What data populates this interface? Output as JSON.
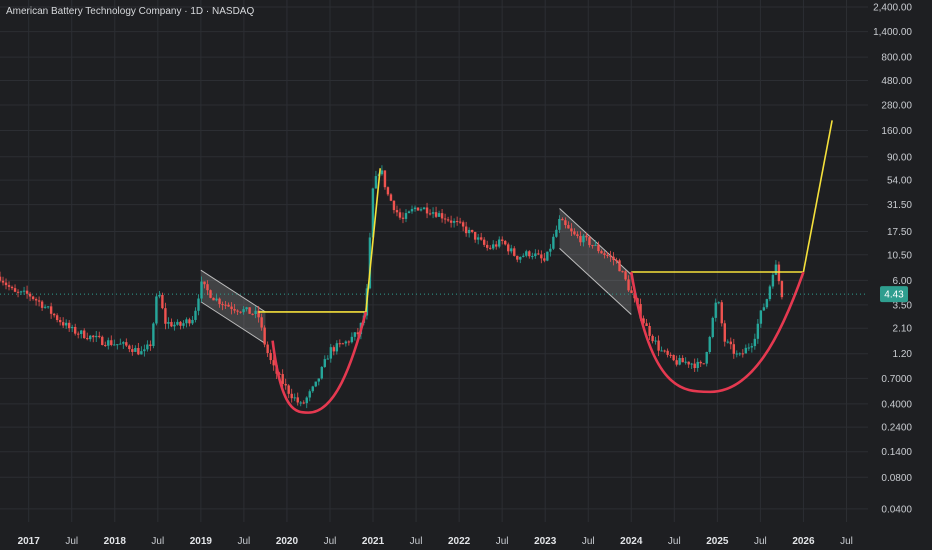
{
  "header": {
    "title": "American Battery Technology Company · 1D · NASDAQ"
  },
  "colors": {
    "background": "#1e1f22",
    "grid": "#2c2e33",
    "up": "#26a69a",
    "down": "#ef5350",
    "trendline": "#f5e13b",
    "cup": "#e53950",
    "channel": "#bdbdbd",
    "current_price": "#2f9e8f"
  },
  "chart_data": {
    "type": "candlestick",
    "title": "American Battery Technology Company · 1D · NASDAQ",
    "y_scale": "log",
    "ylim": [
      0.03,
      2800
    ],
    "xlim": [
      "2016-09",
      "2026-10"
    ],
    "y_ticks": [
      "2,400.00",
      "1,400.00",
      "800.00",
      "480.00",
      "280.00",
      "160.00",
      "90.00",
      "54.00",
      "31.50",
      "17.50",
      "10.50",
      "6.00",
      "3.50",
      "2.10",
      "1.20",
      "0.7000",
      "0.4000",
      "0.2400",
      "0.1400",
      "0.0800",
      "0.0400"
    ],
    "x_ticks": [
      {
        "label": "2017",
        "date": "2017-01",
        "year": true
      },
      {
        "label": "Jul",
        "date": "2017-07",
        "year": false
      },
      {
        "label": "2018",
        "date": "2018-01",
        "year": true
      },
      {
        "label": "Jul",
        "date": "2018-07",
        "year": false
      },
      {
        "label": "2019",
        "date": "2019-01",
        "year": true
      },
      {
        "label": "Jul",
        "date": "2019-07",
        "year": false
      },
      {
        "label": "2020",
        "date": "2020-01",
        "year": true
      },
      {
        "label": "Jul",
        "date": "2020-07",
        "year": false
      },
      {
        "label": "2021",
        "date": "2021-01",
        "year": true
      },
      {
        "label": "Jul",
        "date": "2021-07",
        "year": false
      },
      {
        "label": "2022",
        "date": "2022-01",
        "year": true
      },
      {
        "label": "Jul",
        "date": "2022-07",
        "year": false
      },
      {
        "label": "2023",
        "date": "2023-01",
        "year": true
      },
      {
        "label": "Jul",
        "date": "2023-07",
        "year": false
      },
      {
        "label": "2024",
        "date": "2024-01",
        "year": true
      },
      {
        "label": "Jul",
        "date": "2024-07",
        "year": false
      },
      {
        "label": "2025",
        "date": "2025-01",
        "year": true
      },
      {
        "label": "Jul",
        "date": "2025-07",
        "year": false
      },
      {
        "label": "2026",
        "date": "2026-01",
        "year": true
      },
      {
        "label": "Jul",
        "date": "2026-07",
        "year": false
      }
    ],
    "current_price": {
      "value": 4.43,
      "label": "4.43"
    },
    "price_path": [
      [
        "2016-09",
        6.5
      ],
      [
        "2016-11",
        4.5
      ],
      [
        "2017-01",
        4.4
      ],
      [
        "2017-03",
        3.5
      ],
      [
        "2017-05",
        2.6
      ],
      [
        "2017-07",
        2.0
      ],
      [
        "2017-09",
        1.8
      ],
      [
        "2017-11",
        1.6
      ],
      [
        "2018-01",
        1.5
      ],
      [
        "2018-03",
        1.4
      ],
      [
        "2018-05",
        1.2
      ],
      [
        "2018-06",
        1.5
      ],
      [
        "2018-07",
        5.0
      ],
      [
        "2018-08",
        2.4
      ],
      [
        "2018-10",
        2.2
      ],
      [
        "2018-12",
        2.7
      ],
      [
        "2019-01",
        5.5
      ],
      [
        "2019-03",
        4.0
      ],
      [
        "2019-05",
        3.4
      ],
      [
        "2019-07",
        3.1
      ],
      [
        "2019-09",
        2.8
      ],
      [
        "2019-10",
        1.4
      ],
      [
        "2019-11",
        0.9
      ],
      [
        "2020-01",
        0.55
      ],
      [
        "2020-03",
        0.38
      ],
      [
        "2020-05",
        0.6
      ],
      [
        "2020-07",
        1.3
      ],
      [
        "2020-09",
        1.5
      ],
      [
        "2020-11",
        1.9
      ],
      [
        "2020-12",
        3.2
      ],
      [
        "2021-01",
        45
      ],
      [
        "2021-02",
        72
      ],
      [
        "2021-03",
        40
      ],
      [
        "2021-05",
        22
      ],
      [
        "2021-07",
        30
      ],
      [
        "2021-09",
        28
      ],
      [
        "2021-11",
        24
      ],
      [
        "2022-01",
        20
      ],
      [
        "2022-03",
        16
      ],
      [
        "2022-05",
        12
      ],
      [
        "2022-07",
        14
      ],
      [
        "2022-09",
        10
      ],
      [
        "2022-11",
        11
      ],
      [
        "2023-01",
        9
      ],
      [
        "2023-03",
        22
      ],
      [
        "2023-05",
        16
      ],
      [
        "2023-07",
        14
      ],
      [
        "2023-09",
        11
      ],
      [
        "2023-11",
        9
      ],
      [
        "2024-01",
        4.5
      ],
      [
        "2024-03",
        2.2
      ],
      [
        "2024-05",
        1.3
      ],
      [
        "2024-07",
        1.0
      ],
      [
        "2024-09",
        1.0
      ],
      [
        "2024-11",
        0.9
      ],
      [
        "2025-01",
        4.2
      ],
      [
        "2025-02",
        1.6
      ],
      [
        "2025-04",
        1.1
      ],
      [
        "2025-06",
        1.6
      ],
      [
        "2025-07",
        2.8
      ],
      [
        "2025-08",
        4.2
      ],
      [
        "2025-09",
        9.0
      ],
      [
        "2025-10",
        4.43
      ]
    ],
    "annotations": {
      "channels": [
        {
          "start": [
            "2019-01",
            7.5
          ],
          "end": [
            "2019-10",
            3.0
          ],
          "width_factor": 2.0
        },
        {
          "start": [
            "2023-03",
            29
          ],
          "end": [
            "2024-01",
            6.8
          ],
          "width_factor": 2.4
        }
      ],
      "neckline_1": {
        "start": [
          "2019-09",
          3.0
        ],
        "end": [
          "2020-12",
          3.0
        ]
      },
      "breakout_1": {
        "start": [
          "2020-12",
          3.0
        ],
        "end": [
          "2021-02",
          70
        ]
      },
      "cup_1": {
        "start": [
          "2019-11",
          1.6
        ],
        "bottom": [
          "2020-04",
          0.33
        ],
        "end": [
          "2020-12",
          3.0
        ]
      },
      "neckline_2": {
        "start": [
          "2024-01",
          7.2
        ],
        "end": [
          "2026-01",
          7.2
        ]
      },
      "breakout_2": {
        "start": [
          "2026-01",
          7.2
        ],
        "end": [
          "2026-05",
          200
        ]
      },
      "cup_2": {
        "start": [
          "2024-01",
          7.2
        ],
        "bottom": [
          "2024-12",
          0.52
        ],
        "end": [
          "2026-01",
          7.2
        ]
      }
    }
  }
}
